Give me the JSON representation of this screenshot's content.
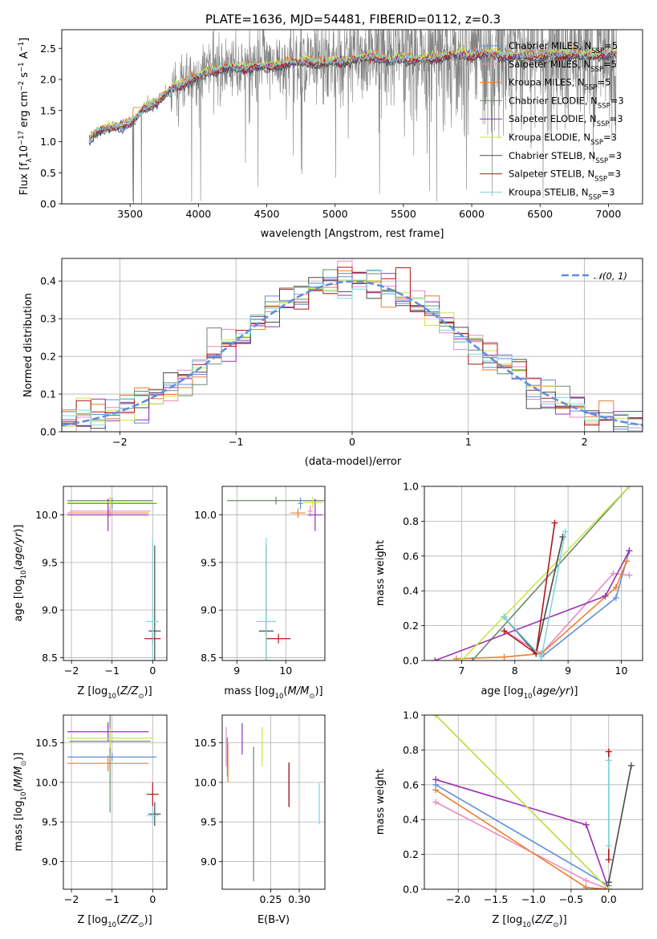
{
  "figure": {
    "title": "PLATE=1636, MJD=54481, FIBERID=0112, z=0.3"
  },
  "colors": {
    "Chabrier MILES": "#5f8fdc",
    "Salpeter MILES": "#e98bc2",
    "Kroupa MILES": "#ee7f2d",
    "Chabrier ELODIE": "#6a8a6a",
    "Salpeter ELODIE": "#9b2fb5",
    "Kroupa ELODIE": "#c6e84a",
    "Chabrier STELIB": "#4a4a4a",
    "Salpeter STELIB": "#b01717",
    "Kroupa STELIB": "#7fd6de",
    "data": "#808080",
    "normal": "#5f8fdc"
  },
  "chart_data": [
    {
      "id": "spectrum",
      "type": "line",
      "xlabel": "wavelength [Angstrom, rest frame]",
      "ylabel": "Flux [f_λ10^-17 erg cm^-2 s^-1 A^-1]",
      "xlim": [
        3000,
        7250
      ],
      "ylim": [
        0,
        2.8
      ],
      "xticks": [
        3500,
        4000,
        4500,
        5000,
        5500,
        6000,
        6500,
        7000
      ],
      "yticks": [
        0.0,
        0.5,
        1.0,
        1.5,
        2.0,
        2.5
      ],
      "legend_position": "upper-right",
      "legend": [
        "Chabrier MILES, N_SSP=5",
        "Salpeter MILES, N_SSP=5",
        "Kroupa MILES, N_SSP=5",
        "Chabrier ELODIE, N_SSP=3",
        "Salpeter ELODIE, N_SSP=3",
        "Kroupa ELODIE, N_SSP=3",
        "Chabrier STELIB, N_SSP=3",
        "Salpeter STELIB, N_SSP=3",
        "Kroupa STELIB, N_SSP=3"
      ],
      "model_continuum": {
        "x": [
          3200,
          3250,
          3300,
          3400,
          3500,
          3550,
          3600,
          3700,
          3800,
          3900,
          4000,
          4100,
          4200,
          4300,
          4400,
          4500,
          4600,
          4700,
          4800,
          4900,
          5000,
          5100,
          5200,
          5300,
          5400,
          5500,
          5600,
          5700,
          5800,
          5900,
          6000,
          6100,
          6200,
          6300,
          6400,
          6500,
          6600,
          6700,
          6800,
          6900,
          7000,
          7050
        ],
        "y": [
          1.05,
          1.15,
          1.2,
          1.25,
          1.3,
          1.4,
          1.55,
          1.65,
          1.85,
          1.95,
          2.05,
          2.15,
          2.2,
          2.18,
          2.22,
          2.2,
          2.25,
          2.28,
          2.3,
          2.25,
          2.3,
          2.3,
          2.35,
          2.38,
          2.3,
          2.35,
          2.32,
          2.35,
          2.38,
          2.4,
          2.4,
          2.42,
          2.4,
          2.38,
          2.4,
          2.38,
          2.4,
          2.42,
          2.38,
          2.4,
          2.4,
          2.42
        ]
      }
    },
    {
      "id": "residuals",
      "type": "line",
      "xlabel": "(data-model)/error",
      "ylabel": "Normed distribution",
      "xlim": [
        -2.5,
        2.5
      ],
      "ylim": [
        0,
        0.46
      ],
      "xticks": [
        -2,
        -1,
        0,
        1,
        2
      ],
      "yticks": [
        0.0,
        0.1,
        0.2,
        0.3,
        0.4
      ],
      "legend": [
        "𝒩(0, 1)"
      ],
      "legend_position": "upper-right",
      "grid": true
    },
    {
      "id": "age_vs_Z",
      "type": "scatter",
      "xlabel": "Z [log10(Z/Z⊙)]",
      "ylabel": "age  [log10(age/yr)]",
      "xlim": [
        -2.2,
        0.35
      ],
      "ylim": [
        8.47,
        10.3
      ],
      "xticks": [
        -2,
        -1,
        0
      ],
      "yticks": [
        8.5,
        9.0,
        9.5,
        10.0
      ],
      "grid": true,
      "points": [
        {
          "model": "Chabrier MILES",
          "x": -1.0,
          "y": 10.12,
          "xerr": 1.1,
          "yerr": 0.06
        },
        {
          "model": "Salpeter MILES",
          "x": -1.05,
          "y": 10.04,
          "xerr": 1.0,
          "yerr": 0.06
        },
        {
          "model": "Kroupa MILES",
          "x": -1.1,
          "y": 10.02,
          "xerr": 1.0,
          "yerr": 0.05
        },
        {
          "model": "Chabrier ELODIE",
          "x": -1.05,
          "y": 10.15,
          "xerr": 1.05,
          "yerr": 0.04
        },
        {
          "model": "Salpeter ELODIE",
          "x": -1.1,
          "y": 10.0,
          "xerr": 1.0,
          "yerr": 0.17
        },
        {
          "model": "Kroupa ELODIE",
          "x": -1.05,
          "y": 10.13,
          "xerr": 1.05,
          "yerr": 0.06
        },
        {
          "model": "Chabrier STELIB",
          "x": 0.05,
          "y": 8.78,
          "xerr": 0.15,
          "yerr": 0.9
        },
        {
          "model": "Salpeter STELIB",
          "x": 0.0,
          "y": 8.7,
          "xerr": 0.2,
          "yerr": 0.05
        },
        {
          "model": "Kroupa STELIB",
          "x": 0.0,
          "y": 8.88,
          "xerr": 0.15,
          "yerr": 0.88
        }
      ]
    },
    {
      "id": "age_vs_mass",
      "type": "scatter",
      "xlabel": "mass [log10(M/M⊙)]",
      "xlim": [
        8.7,
        10.8
      ],
      "ylim": [
        8.47,
        10.3
      ],
      "xticks": [
        9,
        10
      ],
      "yticks": [
        8.5,
        9.0,
        9.5,
        10.0
      ],
      "grid": true,
      "points": [
        {
          "model": "Chabrier MILES",
          "x": 10.3,
          "y": 10.12,
          "xerr": 0.05,
          "yerr": 0.06
        },
        {
          "model": "Salpeter MILES",
          "x": 10.5,
          "y": 10.04,
          "xerr": 0.05,
          "yerr": 0.06
        },
        {
          "model": "Kroupa MILES",
          "x": 10.25,
          "y": 10.02,
          "xerr": 0.15,
          "yerr": 0.05
        },
        {
          "model": "Chabrier ELODIE",
          "x": 9.8,
          "y": 10.15,
          "xerr": 1.0,
          "yerr": 0.04
        },
        {
          "model": "Salpeter ELODIE",
          "x": 10.6,
          "y": 10.0,
          "xerr": 0.15,
          "yerr": 0.17
        },
        {
          "model": "Kroupa ELODIE",
          "x": 10.55,
          "y": 10.13,
          "xerr": 0.2,
          "yerr": 0.06
        },
        {
          "model": "Chabrier STELIB",
          "x": 9.6,
          "y": 8.78,
          "xerr": 0.15,
          "yerr": 0.9
        },
        {
          "model": "Salpeter STELIB",
          "x": 9.85,
          "y": 8.7,
          "xerr": 0.25,
          "yerr": 0.05
        },
        {
          "model": "Kroupa STELIB",
          "x": 9.6,
          "y": 8.88,
          "xerr": 0.2,
          "yerr": 0.88
        }
      ]
    },
    {
      "id": "weight_vs_age",
      "type": "line",
      "xlabel": "age  [log10(age/yr)]",
      "ylabel": "mass weight",
      "xlim": [
        6.3,
        10.4
      ],
      "ylim": [
        0,
        1
      ],
      "xticks": [
        7,
        8,
        9,
        10
      ],
      "yticks": [
        0.0,
        0.2,
        0.4,
        0.6,
        0.8,
        1.0
      ],
      "grid": true,
      "series": [
        {
          "model": "Chabrier MILES",
          "x": [
            8.5,
            9.9,
            10.15
          ],
          "y": [
            0.02,
            0.36,
            0.63
          ]
        },
        {
          "model": "Salpeter MILES",
          "x": [
            7.8,
            8.5,
            9.85,
            10.15
          ],
          "y": [
            0.17,
            0.04,
            0.5,
            0.49
          ]
        },
        {
          "model": "Kroupa MILES",
          "x": [
            6.9,
            7.8,
            8.5,
            9.9,
            10.1
          ],
          "y": [
            0.01,
            0.02,
            0.04,
            0.42,
            0.57
          ]
        },
        {
          "model": "Chabrier ELODIE",
          "x": [
            7.2,
            10.15
          ],
          "y": [
            0.0,
            1.0
          ]
        },
        {
          "model": "Salpeter ELODIE",
          "x": [
            6.5,
            9.7,
            10.15
          ],
          "y": [
            0.0,
            0.37,
            0.63
          ]
        },
        {
          "model": "Kroupa ELODIE",
          "x": [
            7.0,
            10.15
          ],
          "y": [
            0.0,
            1.0
          ]
        },
        {
          "model": "Chabrier STELIB",
          "x": [
            7.8,
            8.4,
            8.9
          ],
          "y": [
            0.25,
            0.04,
            0.71
          ]
        },
        {
          "model": "Salpeter STELIB",
          "x": [
            7.8,
            8.4,
            8.75
          ],
          "y": [
            0.17,
            0.04,
            0.79
          ]
        },
        {
          "model": "Kroupa STELIB",
          "x": [
            7.8,
            8.5,
            8.95
          ],
          "y": [
            0.25,
            0.02,
            0.74
          ]
        }
      ]
    },
    {
      "id": "mass_vs_Z",
      "type": "scatter",
      "xlabel": "Z [log10(Z/Z⊙)]",
      "ylabel": "mass [log10(M/M⊙)]",
      "xlim": [
        -2.2,
        0.35
      ],
      "ylim": [
        8.65,
        10.85
      ],
      "xticks": [
        -2,
        -1,
        0
      ],
      "yticks": [
        9.0,
        9.5,
        10.0,
        10.5
      ],
      "grid": true,
      "points": [
        {
          "model": "Chabrier MILES",
          "x": -1.0,
          "y": 10.32,
          "xerr": 1.1,
          "yerr": 0.05
        },
        {
          "model": "Salpeter MILES",
          "x": -1.05,
          "y": 10.52,
          "xerr": 1.0,
          "yerr": 0.15
        },
        {
          "model": "Kroupa MILES",
          "x": -1.1,
          "y": 10.24,
          "xerr": 1.0,
          "yerr": 0.1
        },
        {
          "model": "Chabrier ELODIE",
          "x": -1.05,
          "y": 10.52,
          "xerr": 1.0,
          "yerr": 0.9
        },
        {
          "model": "Salpeter ELODIE",
          "x": -1.1,
          "y": 10.64,
          "xerr": 1.0,
          "yerr": 0.12
        },
        {
          "model": "Kroupa ELODIE",
          "x": -1.05,
          "y": 10.56,
          "xerr": 1.05,
          "yerr": 0.12
        },
        {
          "model": "Chabrier STELIB",
          "x": 0.05,
          "y": 9.6,
          "xerr": 0.15,
          "yerr": 0.15
        },
        {
          "model": "Salpeter STELIB",
          "x": 0.0,
          "y": 9.85,
          "xerr": 0.15,
          "yerr": 0.15
        },
        {
          "model": "Kroupa STELIB",
          "x": 0.0,
          "y": 9.58,
          "xerr": 0.15,
          "yerr": 0.1
        }
      ]
    },
    {
      "id": "mass_vs_EBV",
      "type": "scatter",
      "xlabel": "E(B-V)",
      "xlim": [
        0.165,
        0.345
      ],
      "ylim": [
        8.65,
        10.85
      ],
      "xticks": [
        0.25,
        0.3
      ],
      "xticklabels": [
        "0.25",
        "0.30"
      ],
      "yticks": [
        9.0,
        9.5,
        10.0,
        10.5
      ],
      "grid": true,
      "points": [
        {
          "model": "Chabrier MILES",
          "x": 0.174,
          "y": 10.32,
          "yerr": 0.25
        },
        {
          "model": "Salpeter MILES",
          "x": 0.172,
          "y": 10.45,
          "yerr": 0.25
        },
        {
          "model": "Kroupa MILES",
          "x": 0.175,
          "y": 10.25,
          "yerr": 0.25
        },
        {
          "model": "Chabrier ELODIE",
          "x": 0.22,
          "y": 9.6,
          "yerr": 0.85
        },
        {
          "model": "Salpeter ELODIE",
          "x": 0.2,
          "y": 10.55,
          "yerr": 0.2
        },
        {
          "model": "Kroupa ELODIE",
          "x": 0.235,
          "y": 10.45,
          "yerr": 0.25
        },
        {
          "model": "Chabrier STELIB",
          "x": 0.282,
          "y": 9.97,
          "yerr": 0.28
        },
        {
          "model": "Salpeter STELIB",
          "x": 0.282,
          "y": 9.97,
          "yerr": 0.28
        },
        {
          "model": "Kroupa STELIB",
          "x": 0.335,
          "y": 9.73,
          "yerr": 0.26
        }
      ]
    },
    {
      "id": "weight_vs_Z",
      "type": "line",
      "xlabel": "Z [log10(Z/Z⊙)]",
      "ylabel": "mass weight",
      "xlim": [
        -2.45,
        0.45
      ],
      "ylim": [
        0,
        1
      ],
      "xticks": [
        -2.0,
        -1.5,
        -1.0,
        -0.5,
        0.0
      ],
      "xticklabels": [
        "−2.0",
        "−1.5",
        "−1.0",
        "−0.5",
        "0.0"
      ],
      "yticks": [
        0.0,
        0.2,
        0.4,
        0.6,
        0.8,
        1.0
      ],
      "grid": true,
      "series": [
        {
          "model": "Chabrier MILES",
          "x": [
            -2.3,
            0.0
          ],
          "y": [
            0.6,
            0.02
          ]
        },
        {
          "model": "Salpeter MILES",
          "x": [
            -2.3,
            -0.3,
            0.0
          ],
          "y": [
            0.5,
            0.05,
            0.0
          ]
        },
        {
          "model": "Kroupa MILES",
          "x": [
            -2.3,
            -0.3,
            0.0
          ],
          "y": [
            0.57,
            0.01,
            0.0
          ]
        },
        {
          "model": "Chabrier ELODIE",
          "x": [
            -2.3,
            0.0
          ],
          "y": [
            1.0,
            0.0
          ]
        },
        {
          "model": "Salpeter ELODIE",
          "x": [
            -2.3,
            -0.3,
            0.0
          ],
          "y": [
            0.63,
            0.37,
            0.0
          ]
        },
        {
          "model": "Kroupa ELODIE",
          "x": [
            -2.3,
            0.0
          ],
          "y": [
            1.0,
            0.0
          ]
        },
        {
          "model": "Chabrier STELIB",
          "x": [
            0.0,
            0.3
          ],
          "y": [
            0.04,
            0.71
          ]
        },
        {
          "model": "Salpeter STELIB",
          "x": [
            0.0,
            0.0
          ],
          "y": [
            0.17,
            0.79
          ]
        },
        {
          "model": "Kroupa STELIB",
          "x": [
            0.0,
            0.0
          ],
          "y": [
            0.25,
            0.74
          ]
        }
      ]
    }
  ]
}
